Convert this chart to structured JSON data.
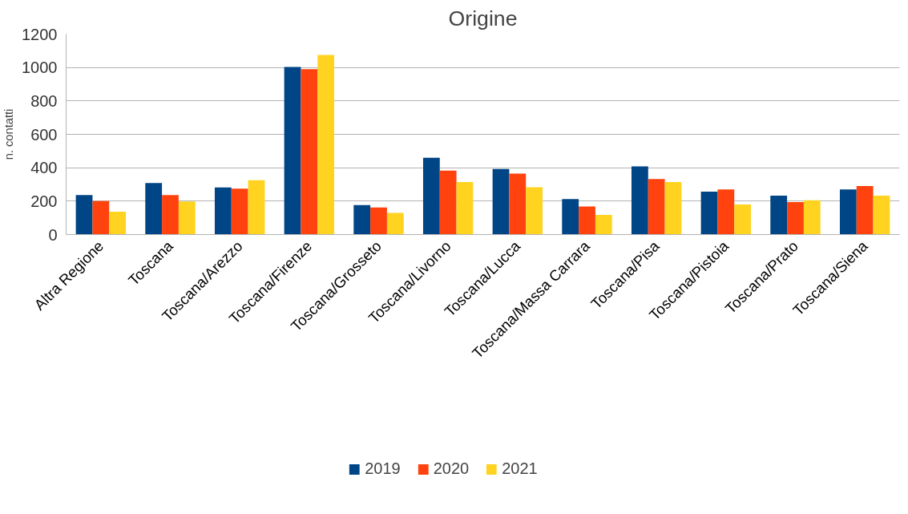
{
  "chart_data": {
    "type": "bar",
    "title": "Origine",
    "ylabel": "n. contatti",
    "categories": [
      "Altra Regione",
      "Toscana",
      "Toscana/Arezzo",
      "Toscana/Firenze",
      "Toscana/Grosseto",
      "Toscana/Livorno",
      "Toscana/Lucca",
      "Toscana/Massa Carrara",
      "Toscana/Pisa",
      "Toscana/Pistoia",
      "Toscana/Prato",
      "Toscana/Siena"
    ],
    "series": [
      {
        "name": "2019",
        "color": "#004586",
        "values": [
          237,
          308,
          282,
          1003,
          177,
          460,
          392,
          213,
          408,
          257,
          233,
          270
        ]
      },
      {
        "name": "2020",
        "color": "#ff420e",
        "values": [
          200,
          237,
          275,
          990,
          162,
          383,
          365,
          168,
          333,
          270,
          195,
          290
        ]
      },
      {
        "name": "2021",
        "color": "#ffd320",
        "values": [
          137,
          198,
          325,
          1075,
          130,
          315,
          283,
          118,
          315,
          180,
          205,
          233
        ]
      }
    ],
    "ylim": [
      0,
      1200
    ],
    "yticks": [
      0,
      200,
      400,
      600,
      800,
      1000,
      1200
    ],
    "grid": "y",
    "legend": "bottom"
  }
}
